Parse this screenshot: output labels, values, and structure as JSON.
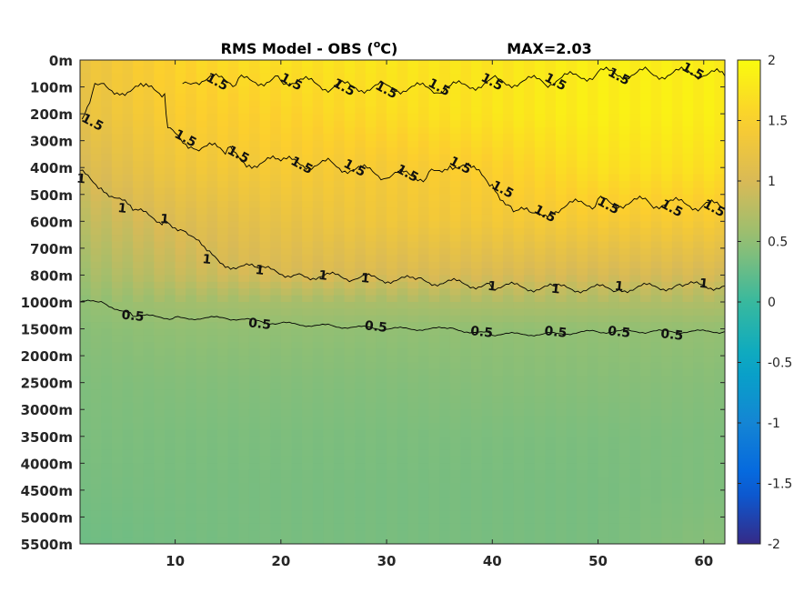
{
  "chart_data": {
    "type": "heatmap",
    "title": "RMS Model - OBS (",
    "title_unit": "C)",
    "title_degree": "o",
    "max_label": "MAX=2.03",
    "x_ticks": [
      10,
      20,
      30,
      40,
      50,
      60
    ],
    "x_range": [
      1,
      62
    ],
    "y_tick_labels": [
      "0m",
      "100m",
      "200m",
      "300m",
      "400m",
      "500m",
      "600m",
      "700m",
      "800m",
      "1000m",
      "1500m",
      "2000m",
      "2500m",
      "3000m",
      "3500m",
      "4000m",
      "4500m",
      "5000m",
      "5500m"
    ],
    "colorbar": {
      "range": [
        -2,
        2
      ],
      "ticks": [
        "2",
        "1.5",
        "1",
        "0.5",
        "0",
        "-0.5",
        "-1",
        "-1.5",
        "-2"
      ],
      "colormap": "parula"
    },
    "contour_levels": [
      0.5,
      1,
      1.5
    ],
    "contour_label_values": [
      "0.5",
      "1",
      "1.5"
    ],
    "field_samples": {
      "x": [
        1,
        10,
        20,
        30,
        40,
        50,
        62
      ],
      "depth_index": [
        0,
        2,
        4,
        6,
        8,
        9,
        10,
        12,
        14,
        16,
        18
      ],
      "values": [
        [
          1.25,
          1.55,
          1.7,
          1.75,
          1.75,
          1.85,
          1.85
        ],
        [
          1.2,
          1.45,
          1.55,
          1.65,
          1.75,
          1.85,
          1.85
        ],
        [
          1.0,
          1.3,
          1.4,
          1.4,
          1.5,
          1.7,
          1.7
        ],
        [
          0.8,
          1.05,
          1.2,
          1.3,
          1.35,
          1.4,
          1.4
        ],
        [
          0.6,
          0.85,
          1.0,
          1.0,
          1.0,
          0.98,
          0.98
        ],
        [
          0.5,
          0.62,
          0.65,
          0.67,
          0.7,
          0.7,
          0.72
        ],
        [
          0.45,
          0.5,
          0.5,
          0.5,
          0.5,
          0.5,
          0.52
        ],
        [
          0.4,
          0.42,
          0.42,
          0.42,
          0.44,
          0.44,
          0.44
        ],
        [
          0.38,
          0.38,
          0.38,
          0.38,
          0.38,
          0.38,
          0.4
        ],
        [
          0.35,
          0.36,
          0.36,
          0.36,
          0.36,
          0.36,
          0.4
        ],
        [
          0.3,
          0.34,
          0.36,
          0.36,
          0.36,
          0.36,
          0.45
        ]
      ]
    },
    "contours": [
      {
        "level": 1.5,
        "points": [
          [
            1.2,
            2.2
          ],
          [
            2.4,
            0.8
          ],
          [
            3,
            1.0
          ],
          [
            5,
            1.1
          ],
          [
            7,
            1.1
          ],
          [
            9,
            1.2
          ],
          [
            9.3,
            2.5
          ],
          [
            10,
            2.8
          ],
          [
            12,
            3.2
          ],
          [
            15,
            3.4
          ],
          [
            17,
            3.8
          ],
          [
            20,
            3.8
          ],
          [
            25,
            3.9
          ],
          [
            30,
            4.3
          ],
          [
            34,
            4.3
          ],
          [
            36,
            3.8
          ],
          [
            38,
            4.1
          ],
          [
            40,
            4.6
          ],
          [
            42,
            5.6
          ],
          [
            44,
            5.8
          ],
          [
            46,
            5.5
          ],
          [
            50,
            5.3
          ],
          [
            55,
            5.3
          ],
          [
            60,
            5.4
          ],
          [
            62,
            5.5
          ]
        ],
        "labels": [
          [
            2.2,
            2.3
          ],
          [
            11,
            2.9
          ],
          [
            16,
            3.5
          ],
          [
            22,
            3.9
          ],
          [
            27,
            4.0
          ],
          [
            32,
            4.2
          ],
          [
            37,
            3.9
          ],
          [
            41,
            4.8
          ],
          [
            45,
            5.7
          ],
          [
            51,
            5.4
          ],
          [
            57,
            5.5
          ],
          [
            61,
            5.5
          ]
        ]
      },
      {
        "level": 1.5,
        "points": [
          [
            10.7,
            1.0
          ],
          [
            12,
            0.7
          ],
          [
            16,
            0.8
          ],
          [
            20,
            0.7
          ],
          [
            25,
            1.0
          ],
          [
            30,
            1.0
          ],
          [
            35,
            1.1
          ],
          [
            40,
            0.8
          ],
          [
            45,
            0.8
          ],
          [
            50,
            0.5
          ],
          [
            55,
            0.5
          ],
          [
            60,
            0.5
          ],
          [
            62,
            0.6
          ]
        ],
        "labels": [
          [
            14,
            0.8
          ],
          [
            21,
            0.8
          ],
          [
            26,
            1.0
          ],
          [
            30,
            1.1
          ],
          [
            35,
            1.0
          ],
          [
            40,
            0.8
          ],
          [
            46,
            0.8
          ],
          [
            52,
            0.6
          ],
          [
            59,
            0.4
          ]
        ]
      },
      {
        "level": 1,
        "points": [
          [
            1,
            4.2
          ],
          [
            3,
            4.7
          ],
          [
            6,
            5.6
          ],
          [
            9,
            6.0
          ],
          [
            11,
            6.3
          ],
          [
            13,
            7.2
          ],
          [
            15,
            7.6
          ],
          [
            18,
            7.8
          ],
          [
            22,
            8.0
          ],
          [
            27,
            8.1
          ],
          [
            33,
            8.2
          ],
          [
            40,
            8.4
          ],
          [
            46,
            8.5
          ],
          [
            52,
            8.5
          ],
          [
            58,
            8.4
          ],
          [
            62,
            8.4
          ]
        ],
        "labels": [
          [
            1.1,
            4.4
          ],
          [
            5,
            5.5
          ],
          [
            9,
            5.9
          ],
          [
            13,
            7.4
          ],
          [
            18,
            7.8
          ],
          [
            24,
            8.0
          ],
          [
            28,
            8.1
          ],
          [
            40,
            8.4
          ],
          [
            46,
            8.5
          ],
          [
            52,
            8.4
          ],
          [
            60,
            8.3
          ]
        ]
      },
      {
        "level": 0.5,
        "points": [
          [
            1,
            9.0
          ],
          [
            3,
            9.0
          ],
          [
            6,
            9.5
          ],
          [
            10,
            9.6
          ],
          [
            15,
            9.6
          ],
          [
            20,
            9.8
          ],
          [
            25,
            9.9
          ],
          [
            30,
            10.0
          ],
          [
            36,
            10.0
          ],
          [
            40,
            10.2
          ],
          [
            45,
            10.2
          ],
          [
            50,
            10.1
          ],
          [
            55,
            10.1
          ],
          [
            62,
            10.1
          ]
        ],
        "labels": [
          [
            6,
            9.5
          ],
          [
            18,
            9.8
          ],
          [
            29,
            9.9
          ],
          [
            39,
            10.1
          ],
          [
            46,
            10.1
          ],
          [
            52,
            10.1
          ],
          [
            57,
            10.2
          ]
        ]
      }
    ]
  }
}
